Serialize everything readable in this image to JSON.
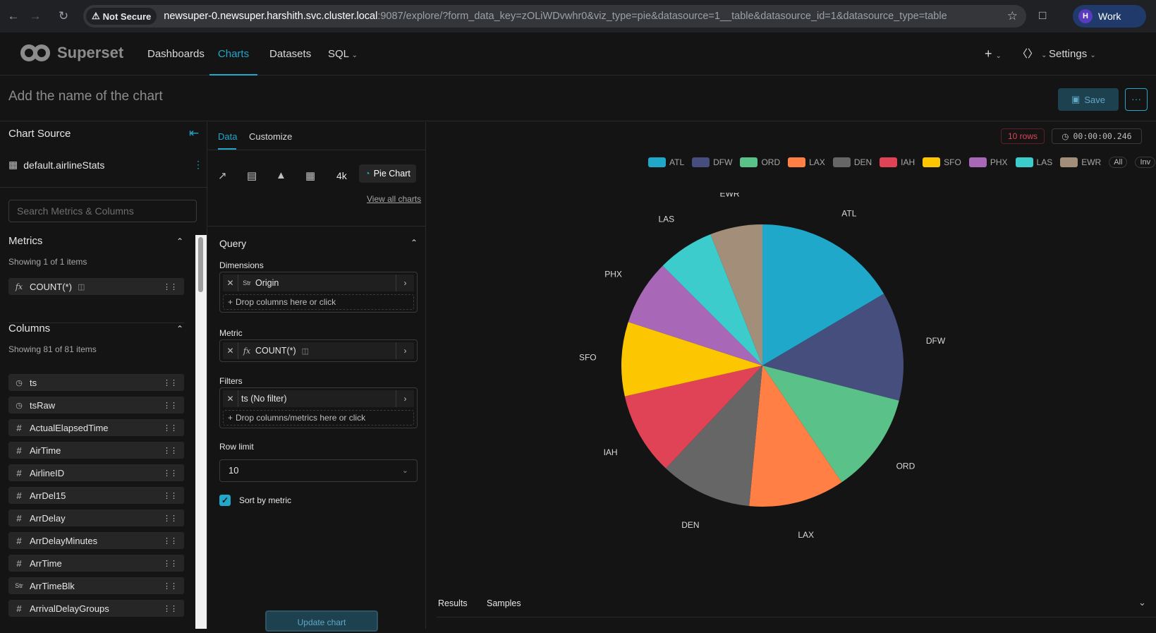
{
  "browser": {
    "not_secure": "Not Secure",
    "url_host": "newsuper-0.newsuper.harshith.svc.cluster.local",
    "url_rest": ":9087/explore/?form_data_key=zOLiWDvwhr0&viz_type=pie&datasource=1__table&datasource_id=1&datasource_type=table",
    "profile_initial": "H",
    "profile_label": "Work"
  },
  "header": {
    "logo_text": "Superset",
    "menu": [
      "Dashboards",
      "Charts",
      "Datasets",
      "SQL"
    ],
    "settings": "Settings"
  },
  "title_row": {
    "chart_title_placeholder": "Add the name of the chart",
    "save_label": "Save"
  },
  "left_panel": {
    "title": "Chart Source",
    "dataset": "default.airlineStats",
    "search_placeholder": "Search Metrics & Columns",
    "metrics_title": "Metrics",
    "metrics_count": "Showing 1 of 1 items",
    "metrics": [
      {
        "icon": "fx",
        "label": "COUNT(*)"
      }
    ],
    "columns_title": "Columns",
    "columns_count": "Showing 81 of 81 items",
    "columns": [
      {
        "type": "time",
        "label": "ts"
      },
      {
        "type": "time",
        "label": "tsRaw"
      },
      {
        "type": "num",
        "label": "ActualElapsedTime"
      },
      {
        "type": "num",
        "label": "AirTime"
      },
      {
        "type": "num",
        "label": "AirlineID"
      },
      {
        "type": "num",
        "label": "ArrDel15"
      },
      {
        "type": "num",
        "label": "ArrDelay"
      },
      {
        "type": "num",
        "label": "ArrDelayMinutes"
      },
      {
        "type": "num",
        "label": "ArrTime"
      },
      {
        "type": "str",
        "label": "ArrTimeBlk"
      },
      {
        "type": "num",
        "label": "ArrivalDelayGroups"
      }
    ]
  },
  "control_panel": {
    "tab_data": "Data",
    "tab_customize": "Customize",
    "viz_4k": "4k",
    "viz_selected": "Pie Chart",
    "view_all": "View all charts",
    "query_title": "Query",
    "dimensions_label": "Dimensions",
    "dimension_value": "Origin",
    "dimension_drop": "Drop columns here or click",
    "metric_label": "Metric",
    "metric_value": "COUNT(*)",
    "filters_label": "Filters",
    "filter_value": "ts (No filter)",
    "filter_drop": "Drop columns/metrics here or click",
    "row_limit_label": "Row limit",
    "row_limit_value": "10",
    "sort_label": "Sort by metric",
    "sort_checked": true,
    "update_label": "Update chart"
  },
  "chart_area": {
    "rows_badge": "10 rows",
    "timer": "00:00:00.246",
    "legend_all": "All",
    "legend_inv": "Inv",
    "results_tab": "Results",
    "samples_tab": "Samples"
  },
  "chart_data": {
    "type": "pie",
    "categories": [
      "ATL",
      "DFW",
      "ORD",
      "LAX",
      "DEN",
      "IAH",
      "SFO",
      "PHX",
      "LAS",
      "EWR"
    ],
    "values": [
      16.5,
      12.5,
      11.5,
      11.0,
      10.5,
      9.5,
      8.5,
      7.5,
      6.5,
      6.0
    ],
    "colors": [
      "#1FA8C9",
      "#454E7C",
      "#5AC189",
      "#FF7F44",
      "#666666",
      "#E04355",
      "#FCC700",
      "#A868B7",
      "#3CCCCB",
      "#A38F79"
    ],
    "legend_position": "top"
  }
}
